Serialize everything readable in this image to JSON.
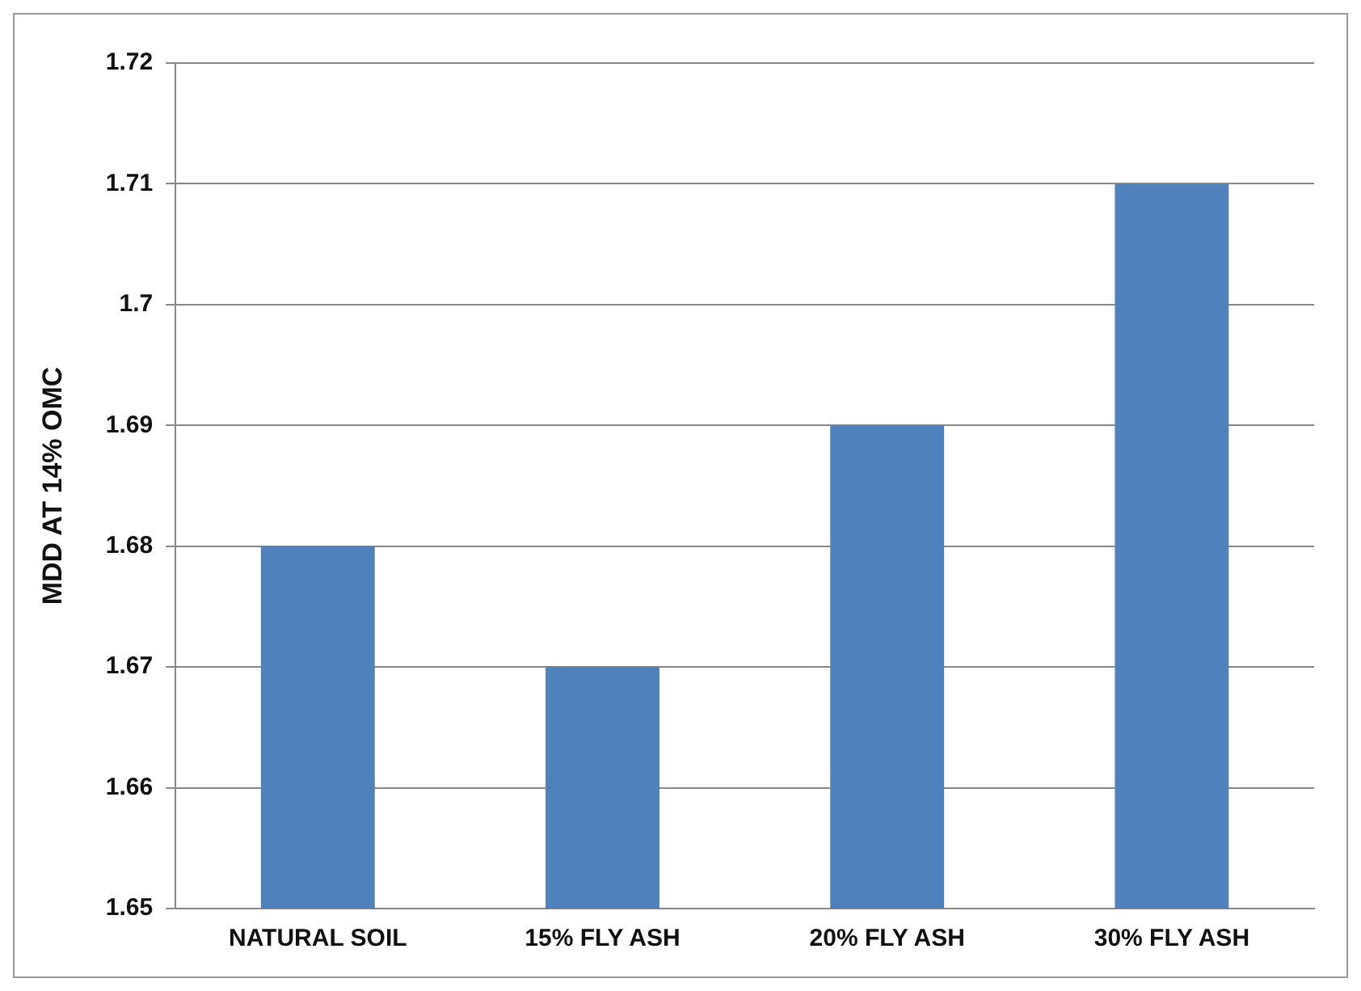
{
  "chart_data": {
    "type": "bar",
    "ylabel": "MDD AT 14% OMC",
    "categories": [
      "NATURAL SOIL",
      "15% FLY ASH",
      "20% FLY ASH",
      "30% FLY ASH"
    ],
    "values": [
      1.68,
      1.67,
      1.69,
      1.71
    ],
    "color": "#4f81bd",
    "ylim": [
      1.65,
      1.72
    ],
    "yticks": [
      1.65,
      1.66,
      1.67,
      1.68,
      1.69,
      1.7,
      1.71,
      1.72
    ],
    "grid": "y",
    "legend": false
  }
}
